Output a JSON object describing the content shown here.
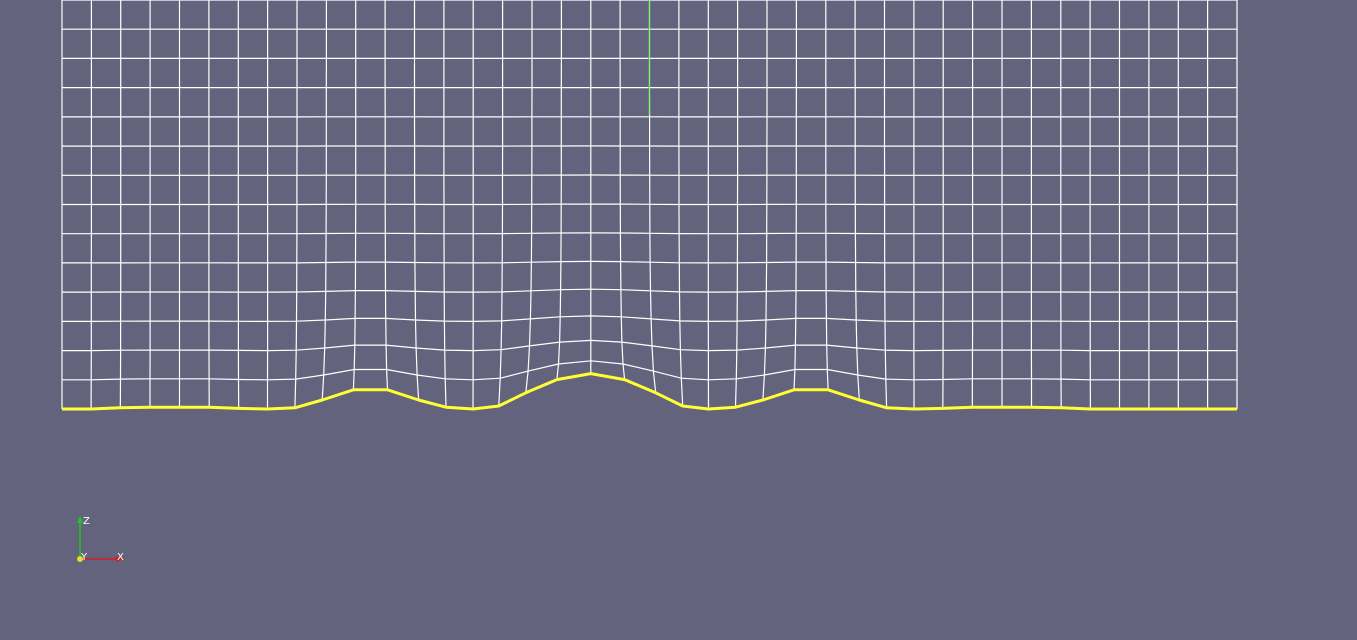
{
  "viewport": {
    "background_color": "#63637d",
    "mesh_color": "#ffffff",
    "boundary_color": "#ffff33",
    "center_axis_color": "#33cc33",
    "columns": 40,
    "rows": 14,
    "surface_profile": [
      0,
      0.0,
      0.02,
      0.03,
      0.03,
      0.03,
      0.01,
      0.0,
      0.02,
      0.15,
      0.32,
      0.32,
      0.15,
      0.03,
      0.0,
      0.05,
      0.27,
      0.49,
      0.59,
      0.49,
      0.27,
      0.05,
      0.0,
      0.03,
      0.15,
      0.32,
      0.32,
      0.15,
      0.02,
      0.0,
      0.01,
      0.03,
      0.03,
      0.03,
      0.02,
      0.0,
      0.0,
      0.0,
      0.0,
      0.0,
      0.0
    ]
  },
  "orientation_axes": {
    "z_label": "Z",
    "y_label": "Y",
    "x_label": "X",
    "x_color": "#d21e1e",
    "y_color": "#e6dc1e",
    "z_color": "#1ec81e"
  }
}
